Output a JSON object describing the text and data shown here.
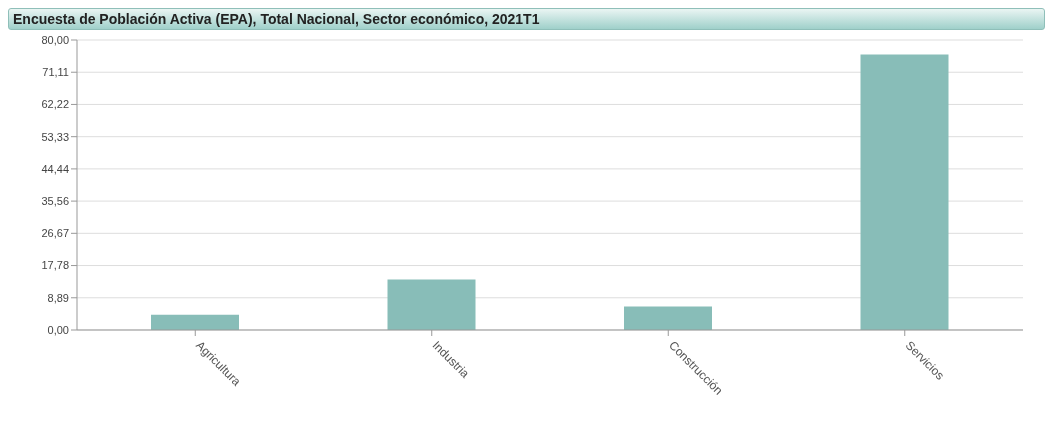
{
  "chart_data": {
    "type": "bar",
    "title": "Encuesta de Población Activa (EPA), Total Nacional, Sector económico, 2021T1",
    "categories": [
      "Agricultura",
      "Industria",
      "Construcción",
      "Servicios"
    ],
    "values": [
      4.2,
      13.9,
      6.5,
      76.0
    ],
    "color": "#88bdb8",
    "ylim": [
      0,
      80
    ],
    "yticks": [
      {
        "value": 0,
        "label": "0,00"
      },
      {
        "value": 8.89,
        "label": "8,89"
      },
      {
        "value": 17.78,
        "label": "17,78"
      },
      {
        "value": 26.67,
        "label": "26,67"
      },
      {
        "value": 35.56,
        "label": "35,56"
      },
      {
        "value": 44.44,
        "label": "44,44"
      },
      {
        "value": 53.33,
        "label": "53,33"
      },
      {
        "value": 62.22,
        "label": "62,22"
      },
      {
        "value": 71.11,
        "label": "71,11"
      },
      {
        "value": 80,
        "label": "80,00"
      }
    ],
    "grid": "y"
  }
}
